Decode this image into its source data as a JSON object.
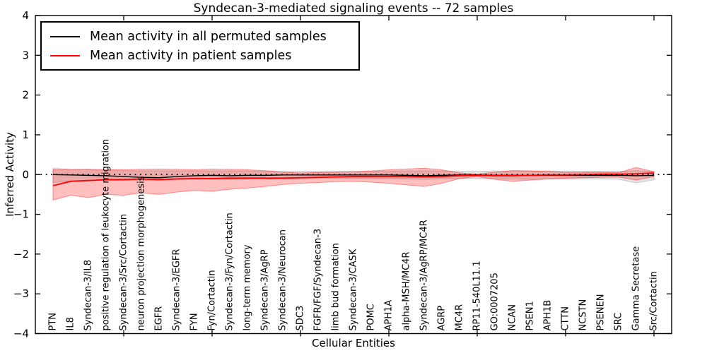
{
  "chart_data": {
    "type": "line",
    "title": "Syndecan-3-mediated signaling events -- 72 samples",
    "xlabel": "Cellular Entities",
    "ylabel": "Inferred Activity",
    "ylim": [
      -4,
      4
    ],
    "yticks": [
      -4,
      -3,
      -2,
      -1,
      0,
      1,
      2,
      3,
      4
    ],
    "grid": false,
    "legend_position": "upper left",
    "zero_line": {
      "y": 0,
      "style": "dotted",
      "color": "#000000"
    },
    "categories": [
      "PTN",
      "IL8",
      "Syndecan-3/IL8",
      "positive regulation of leukocyte migration",
      "Syndecan-3/Src/Cortactin",
      "neuron projection morphogenesis",
      "EGFR",
      "Syndecan-3/EGFR",
      "FYN",
      "Fyn/Cortactin",
      "Syndecan-3/Fyn/Cortactin",
      "long-term memory",
      "Syndecan-3/AgRP",
      "Syndecan-3/Neurocan",
      "SDC3",
      "FGFR/FGF/Syndecan-3",
      "limb bud formation",
      "Syndecan-3/CASK",
      "POMC",
      "APH1A",
      "alpha-MSH/MC4R",
      "Syndecan-3/AgRP/MC4R",
      "AGRP",
      "MC4R",
      "RP11-540L11.1",
      "GO:0007205",
      "NCAN",
      "PSEN1",
      "APH1B",
      "CTTN",
      "NCSTN",
      "PSENEN",
      "SRC",
      "Gamma Secretase",
      "Src/Cortactin"
    ],
    "series": [
      {
        "name": "Mean activity in all permuted samples",
        "color": "#000000",
        "band_color": "#999999",
        "values": [
          0.0,
          -0.01,
          -0.02,
          -0.03,
          -0.05,
          -0.07,
          -0.08,
          -0.05,
          -0.03,
          -0.02,
          -0.03,
          -0.02,
          -0.02,
          -0.01,
          -0.01,
          -0.01,
          -0.01,
          -0.01,
          -0.01,
          -0.01,
          -0.02,
          -0.03,
          -0.02,
          -0.01,
          -0.01,
          -0.02,
          -0.02,
          -0.02,
          -0.02,
          -0.02,
          -0.02,
          -0.02,
          -0.02,
          -0.03,
          -0.02
        ],
        "band_upper": [
          0.16,
          0.13,
          0.12,
          0.11,
          0.1,
          0.09,
          0.09,
          0.09,
          0.09,
          0.09,
          0.09,
          0.09,
          0.08,
          0.08,
          0.08,
          0.08,
          0.08,
          0.08,
          0.08,
          0.08,
          0.09,
          0.09,
          0.09,
          0.08,
          0.08,
          0.09,
          0.09,
          0.09,
          0.09,
          0.08,
          0.08,
          0.08,
          0.08,
          0.1,
          0.08
        ],
        "band_lower": [
          -0.2,
          -0.17,
          -0.15,
          -0.14,
          -0.14,
          -0.14,
          -0.14,
          -0.13,
          -0.12,
          -0.12,
          -0.12,
          -0.11,
          -0.11,
          -0.11,
          -0.1,
          -0.1,
          -0.1,
          -0.1,
          -0.1,
          -0.1,
          -0.11,
          -0.12,
          -0.11,
          -0.1,
          -0.1,
          -0.11,
          -0.12,
          -0.12,
          -0.11,
          -0.11,
          -0.11,
          -0.11,
          -0.12,
          -0.21,
          -0.13
        ]
      },
      {
        "name": "Mean activity in patient samples",
        "color": "#ff0000",
        "band_color": "#ff0000",
        "values": [
          -0.28,
          -0.17,
          -0.15,
          -0.13,
          -0.13,
          -0.11,
          -0.13,
          -0.11,
          -0.1,
          -0.1,
          -0.09,
          -0.09,
          -0.09,
          -0.09,
          -0.08,
          -0.07,
          -0.06,
          -0.05,
          -0.05,
          -0.05,
          -0.05,
          -0.06,
          -0.05,
          -0.03,
          -0.02,
          -0.03,
          -0.03,
          -0.02,
          -0.01,
          -0.01,
          0.0,
          0.01,
          0.01,
          0.02,
          0.04
        ],
        "band_upper": [
          0.12,
          0.12,
          0.13,
          0.12,
          0.12,
          0.13,
          0.14,
          0.13,
          0.12,
          0.14,
          0.13,
          0.12,
          0.1,
          0.06,
          0.04,
          0.05,
          0.06,
          0.07,
          0.09,
          0.12,
          0.14,
          0.16,
          0.12,
          0.04,
          0.01,
          0.06,
          0.1,
          0.09,
          0.08,
          0.06,
          0.06,
          0.06,
          0.05,
          0.18,
          0.07
        ],
        "band_lower": [
          -0.64,
          -0.52,
          -0.58,
          -0.5,
          -0.52,
          -0.46,
          -0.5,
          -0.44,
          -0.4,
          -0.42,
          -0.37,
          -0.34,
          -0.3,
          -0.25,
          -0.22,
          -0.2,
          -0.18,
          -0.17,
          -0.19,
          -0.22,
          -0.26,
          -0.3,
          -0.22,
          -0.1,
          -0.05,
          -0.12,
          -0.17,
          -0.14,
          -0.11,
          -0.09,
          -0.08,
          -0.07,
          -0.06,
          -0.14,
          -0.05
        ]
      }
    ]
  }
}
